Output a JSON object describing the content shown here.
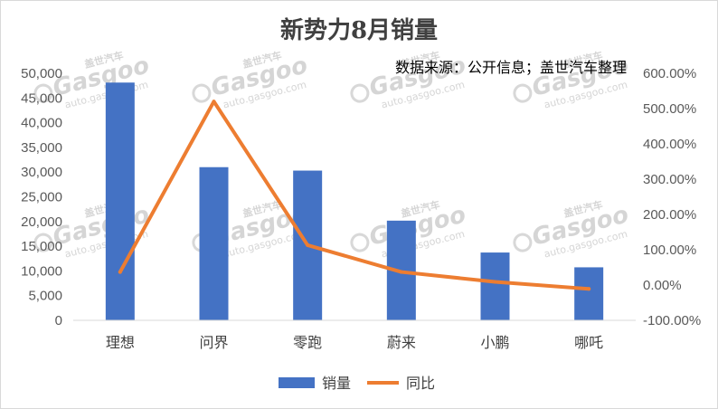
{
  "chart_data": {
    "type": "bar",
    "title": "新势力8月销量",
    "source": "数据来源：公开信息；盖世汽车整理",
    "categories": [
      "理想",
      "问界",
      "零跑",
      "蔚来",
      "小鹏",
      "哪吒"
    ],
    "series": [
      {
        "name": "销量",
        "type": "bar",
        "axis": "left",
        "color": "#4472C4",
        "values": [
          48122,
          31000,
          30305,
          20176,
          13723,
          10729
        ]
      },
      {
        "name": "同比",
        "type": "line",
        "axis": "right",
        "color": "#ED7D31",
        "values": [
          0.37,
          5.2,
          1.13,
          0.37,
          0.09,
          -0.11
        ]
      }
    ],
    "y_left": {
      "min": 0,
      "max": 50000,
      "step": 5000,
      "ticks": [
        "0",
        "5,000",
        "10,000",
        "15,000",
        "20,000",
        "25,000",
        "30,000",
        "35,000",
        "40,000",
        "45,000",
        "50,000"
      ]
    },
    "y_right": {
      "min": -1.0,
      "max": 6.0,
      "step": 1.0,
      "ticks": [
        "-100.00%",
        "0.00%",
        "100.00%",
        "200.00%",
        "300.00%",
        "400.00%",
        "500.00%",
        "600.00%"
      ]
    },
    "grid": false,
    "legend_position": "bottom",
    "watermark": {
      "brand": "Gasgoo",
      "cn": "盖世汽车",
      "url": "auto.gasgoo.com"
    }
  }
}
